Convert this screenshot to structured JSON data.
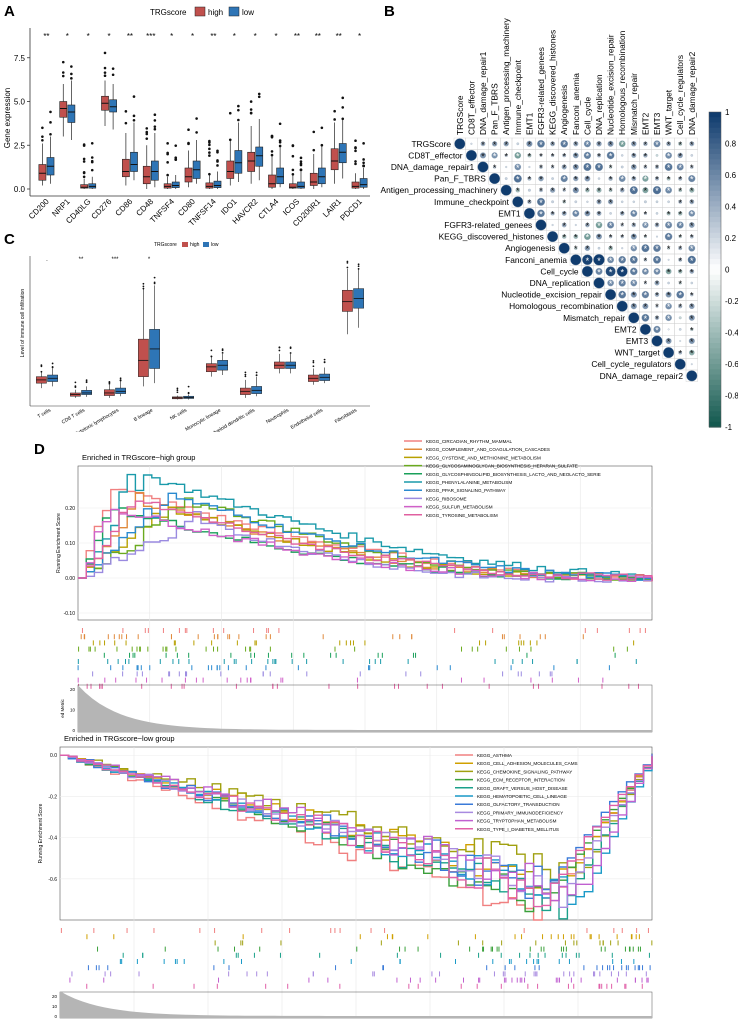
{
  "panels": {
    "A": {
      "label": "A",
      "legend": {
        "title": "TRGscore",
        "high": "high",
        "low": "low"
      },
      "colors": {
        "high": "#c0504d",
        "low": "#2e75b6"
      },
      "ylabel": "Gene expression",
      "yticks": [
        "0.0",
        "2.5",
        "5.0",
        "7.5"
      ],
      "genes": [
        "CD200",
        "NRP1",
        "CD40LG",
        "CD276",
        "CD86",
        "CD48",
        "TNFSF4",
        "CD80",
        "TNFSF14",
        "IDO1",
        "HAVCR2",
        "CTLA4",
        "ICOS",
        "CD200R1",
        "LAIR1",
        "PDCD1"
      ],
      "signif": [
        "**",
        "*",
        "*",
        "*",
        "**",
        "***",
        "*",
        "*",
        "**",
        "*",
        "*",
        "*",
        "**",
        "**",
        "**",
        "*"
      ],
      "high": [
        [
          0.2,
          0.5,
          0.9,
          1.4,
          2.6
        ],
        [
          3.0,
          4.1,
          4.6,
          5.0,
          6.0
        ],
        [
          0.0,
          0.05,
          0.1,
          0.25,
          0.6
        ],
        [
          3.6,
          4.5,
          4.9,
          5.3,
          6.2
        ],
        [
          0.2,
          0.7,
          1.0,
          1.7,
          3.2
        ],
        [
          0.0,
          0.3,
          0.7,
          1.3,
          2.5
        ],
        [
          0.0,
          0.05,
          0.15,
          0.3,
          0.7
        ],
        [
          0.1,
          0.4,
          0.7,
          1.2,
          2.2
        ],
        [
          0.0,
          0.05,
          0.15,
          0.35,
          0.8
        ],
        [
          0.2,
          0.6,
          1.0,
          1.6,
          2.8
        ],
        [
          0.3,
          1.0,
          1.6,
          2.1,
          3.6
        ],
        [
          0.0,
          0.1,
          0.3,
          0.8,
          1.9
        ],
        [
          0.0,
          0.05,
          0.1,
          0.3,
          0.8
        ],
        [
          0.0,
          0.2,
          0.4,
          0.9,
          2.0
        ],
        [
          0.3,
          1.1,
          1.6,
          2.3,
          3.8
        ],
        [
          0.0,
          0.05,
          0.15,
          0.4,
          0.9
        ]
      ],
      "low": [
        [
          0.3,
          0.8,
          1.3,
          1.8,
          3.0
        ],
        [
          2.8,
          3.8,
          4.4,
          4.8,
          6.2
        ],
        [
          0.0,
          0.05,
          0.15,
          0.3,
          0.7
        ],
        [
          3.4,
          4.4,
          4.7,
          5.1,
          6.0
        ],
        [
          0.5,
          1.0,
          1.4,
          2.1,
          3.8
        ],
        [
          0.1,
          0.5,
          1.0,
          1.6,
          3.2
        ],
        [
          0.0,
          0.08,
          0.2,
          0.4,
          0.8
        ],
        [
          0.3,
          0.6,
          1.1,
          1.6,
          2.8
        ],
        [
          0.0,
          0.08,
          0.2,
          0.45,
          1.0
        ],
        [
          0.4,
          0.9,
          1.5,
          2.2,
          3.8
        ],
        [
          0.5,
          1.3,
          1.9,
          2.4,
          4.0
        ],
        [
          0.1,
          0.3,
          0.7,
          1.2,
          2.4
        ],
        [
          0.0,
          0.05,
          0.15,
          0.4,
          1.0
        ],
        [
          0.1,
          0.3,
          0.7,
          1.2,
          2.5
        ],
        [
          0.6,
          1.5,
          2.1,
          2.6,
          4.0
        ],
        [
          0.0,
          0.1,
          0.25,
          0.6,
          1.2
        ]
      ]
    },
    "B": {
      "label": "B",
      "vars": [
        "TRGScore",
        "CD8T_effector",
        "DNA_damage_repair1",
        "Pan_F_TBRS",
        "Antigen_processing_machinery",
        "Immune_checkpoint",
        "EMT1",
        "FGFR3-related_genees",
        "KEGG_discovered_histones",
        "Angiogenesis",
        "Fanconi_anemia",
        "Cell_cycle",
        "DNA_replication",
        "Nucleotide_excision_repair",
        "Homologous_recombination",
        "Mismatch_repair",
        "EMT2",
        "EMT3",
        "WNT_target",
        "Cell_cycle_regulators",
        "DNA_damage_repair2"
      ],
      "colorbar_ticks": [
        "1",
        "0.8",
        "0.6",
        "0.4",
        "0.2",
        "0",
        "-0.2",
        "-0.4",
        "-0.6",
        "-0.8",
        "-1"
      ],
      "star": "*"
    },
    "C": {
      "label": "C",
      "legend": {
        "title": "TRGscore",
        "high": "high",
        "low": "low"
      },
      "ylabel": "Level of immune cell infiltration",
      "cells": [
        "T cells",
        "CD8 T cells",
        "Cytotoxic lymphocytes",
        "B lineage",
        "NK cells",
        "Monocytic lineage",
        "Myeloid dendritic cells",
        "Neutrophils",
        "Endothelial cells",
        "Fibroblasts"
      ],
      "signif": [
        ".",
        "**",
        "***",
        "*",
        "",
        "",
        "",
        "",
        "",
        ""
      ],
      "high": [
        [
          2.35,
          2.5,
          2.6,
          2.7,
          2.85
        ],
        [
          2.05,
          2.1,
          2.15,
          2.2,
          2.3
        ],
        [
          2.05,
          2.12,
          2.2,
          2.3,
          2.45
        ],
        [
          2.4,
          2.7,
          3.2,
          3.85,
          5.4
        ],
        [
          2.0,
          2.02,
          2.05,
          2.08,
          2.12
        ],
        [
          2.7,
          2.85,
          3.0,
          3.1,
          3.3
        ],
        [
          2.05,
          2.15,
          2.25,
          2.35,
          2.6
        ],
        [
          2.8,
          2.95,
          3.05,
          3.15,
          3.4
        ],
        [
          2.45,
          2.55,
          2.65,
          2.75,
          2.95
        ],
        [
          4.0,
          4.7,
          5.0,
          5.35,
          6.0
        ]
      ],
      "low": [
        [
          2.4,
          2.55,
          2.65,
          2.75,
          2.95
        ],
        [
          2.08,
          2.15,
          2.2,
          2.28,
          2.4
        ],
        [
          2.1,
          2.18,
          2.25,
          2.35,
          2.55
        ],
        [
          2.5,
          2.95,
          3.55,
          4.15,
          5.5
        ],
        [
          2.0,
          2.03,
          2.06,
          2.1,
          2.15
        ],
        [
          2.75,
          2.9,
          3.05,
          3.2,
          3.4
        ],
        [
          2.1,
          2.18,
          2.28,
          2.4,
          2.7
        ],
        [
          2.8,
          2.95,
          3.05,
          3.15,
          3.4
        ],
        [
          2.5,
          2.58,
          2.68,
          2.78,
          2.98
        ],
        [
          4.2,
          4.8,
          5.1,
          5.4,
          6.0
        ]
      ]
    },
    "D": {
      "label": "D",
      "top": {
        "title": "Enriched in TRGscore−high group",
        "ylabel": "Running Enrichment Score",
        "rank_label": "ed Metric",
        "yticks": [
          "0.20",
          "0.10",
          "0.00",
          "-0.10"
        ],
        "ylim": [
          -0.12,
          0.32
        ],
        "rank_ticks": [
          "20",
          "10",
          "0"
        ],
        "terms": [
          "KEGG_CIRCADIAN_RHYTHM_MAMMAL",
          "KEGG_COMPLEMENT_AND_COAGULATION_CASCADES",
          "KEGG_CYSTEINE_AND_METHIONINE_METABOLISM",
          "KEGG_GLYCOSAMINOGLYCAN_BIOSYNTHESIS_HEPARAN_SULFATE",
          "KEGG_GLYCOSPHINGOLIPID_BIOSYNTHESIS_LACTO_AND_NEOLACTO_SERIE",
          "KEGG_PHENYLALANINE_METABOLISM",
          "KEGG_PPAR_SIGNALING_PATHWAY",
          "KEGG_RIBOSOME",
          "KEGG_SULFUR_METABOLISM",
          "KEGG_TYROSINE_METABOLISM"
        ],
        "colors": [
          "#f08080",
          "#e08a3c",
          "#b8a000",
          "#6aaa1e",
          "#1aa05a",
          "#1a9aaa",
          "#2a8ad0",
          "#9a8ae0",
          "#d060c8",
          "#e060a0"
        ],
        "peaks": [
          0.26,
          0.22,
          0.2,
          0.22,
          0.2,
          0.3,
          0.24,
          0.16,
          0.2,
          0.22
        ]
      },
      "bottom": {
        "title": "Enriched in TRGscore−low group",
        "ylabel": "Running Enrichment Score",
        "yticks": [
          "0.0",
          "-0.2",
          "-0.4",
          "-0.6"
        ],
        "ylim": [
          -0.8,
          0.04
        ],
        "rank_ticks": [
          "20",
          "10",
          "0"
        ],
        "terms": [
          "KEGG_ASTHMA",
          "KEGG_CELL_ADHESION_MOLECULES_CAMS",
          "KEGG_CHEMOKINE_SIGNALING_PATHWAY",
          "KEGG_ECM_RECEPTOR_INTERACTION",
          "KEGG_GRAFT_VERSUS_HOST_DISEASE",
          "KEGG_HEMATOPOIETIC_CELL_LINEAGE",
          "KEGG_OLFACTORY_TRANSDUCTION",
          "KEGG_PRIMARY_IMMUNODEFICIENCY",
          "KEGG_TRYPTOPHAN_METABOLISM",
          "KEGG_TYPE_I_DIABETES_MELLITUS"
        ],
        "colors": [
          "#f08080",
          "#d0a000",
          "#a0a010",
          "#3aa03a",
          "#1aa08a",
          "#1a9ac8",
          "#3a7ad8",
          "#a88ae0",
          "#c060d0",
          "#e060a8"
        ],
        "troughs": [
          -0.74,
          -0.62,
          -0.58,
          -0.7,
          -0.72,
          -0.7,
          -0.64,
          -0.66,
          -0.66,
          -0.66
        ]
      }
    }
  }
}
